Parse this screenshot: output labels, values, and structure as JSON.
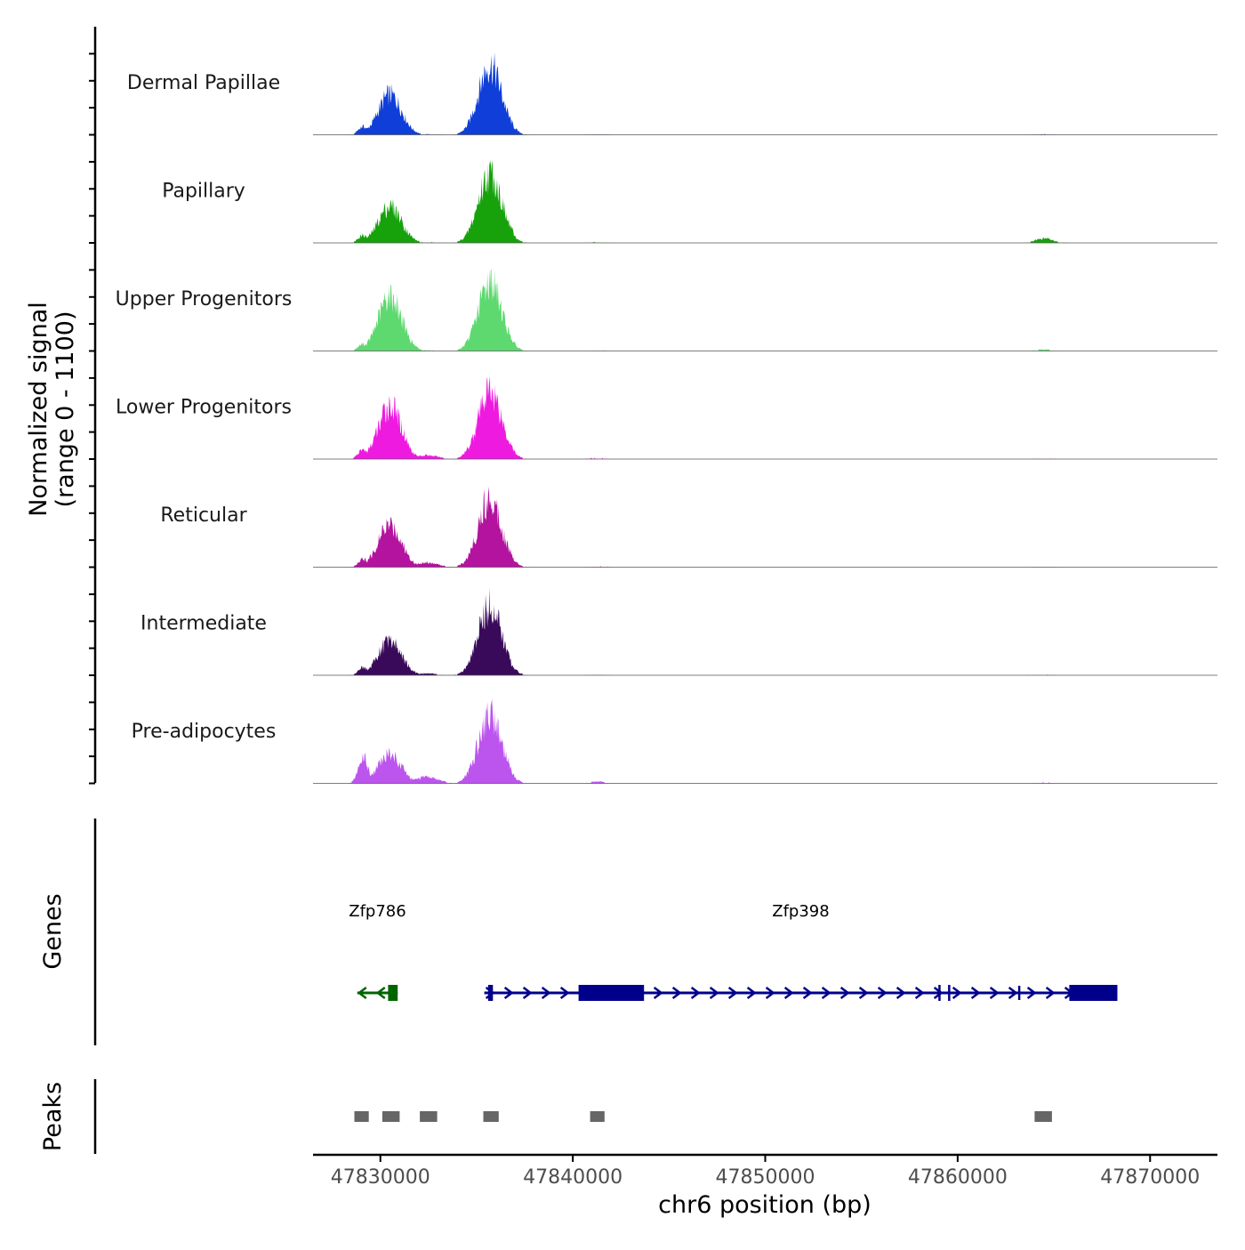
{
  "chart_data": {
    "type": "area",
    "chromosome": "chr6",
    "xlabel": "chr6 position (bp)",
    "ylabel_line1": "Normalized signal",
    "ylabel_line2": "(range 0 - 1100)",
    "ylim": [
      0,
      1100
    ],
    "xlim": [
      47826500,
      47873500
    ],
    "x_ticks": [
      47830000,
      47840000,
      47850000,
      47860000,
      47870000
    ],
    "x_tick_labels": [
      "47830000",
      "47840000",
      "47850000",
      "47860000",
      "47870000"
    ],
    "peak_profile": [
      {
        "center": 47829100,
        "width": 250
      },
      {
        "center": 47830500,
        "width": 600
      },
      {
        "center": 47832400,
        "width": 600
      },
      {
        "center": 47835700,
        "width": 600
      },
      {
        "center": 47836600,
        "width": 250
      },
      {
        "center": 47841300,
        "width": 400
      },
      {
        "center": 47864500,
        "width": 450
      }
    ],
    "series": [
      {
        "name": "Dermal Papillae",
        "color": "#0F3FD8",
        "peak_values": [
          130,
          640,
          15,
          1100,
          300,
          15,
          10
        ]
      },
      {
        "name": "Papillary",
        "color": "#17A20C",
        "peak_values": [
          120,
          580,
          15,
          1100,
          330,
          15,
          70
        ]
      },
      {
        "name": "Upper Progenitors",
        "color": "#5ED970",
        "peak_values": [
          110,
          870,
          15,
          1100,
          310,
          15,
          25
        ]
      },
      {
        "name": "Lower Progenitors",
        "color": "#EE1AE0",
        "peak_values": [
          150,
          840,
          60,
          1100,
          330,
          20,
          10
        ]
      },
      {
        "name": "Reticular",
        "color": "#B3139E",
        "peak_values": [
          130,
          670,
          70,
          1100,
          250,
          15,
          10
        ]
      },
      {
        "name": "Intermediate",
        "color": "#3A0A5A",
        "peak_values": [
          130,
          550,
          30,
          1100,
          200,
          15,
          10
        ]
      },
      {
        "name": "Pre-adipocytes",
        "color": "#BC55EE",
        "peak_values": [
          420,
          460,
          100,
          1100,
          250,
          30,
          20
        ]
      }
    ],
    "genes_label": "Genes",
    "genes": [
      {
        "name": "Zfp786",
        "strand": "-",
        "color": "#006400",
        "start": 47828800,
        "end": 47830900,
        "exons": [
          [
            47830400,
            47830900
          ]
        ]
      },
      {
        "name": "Zfp398",
        "strand": "+",
        "color": "#00008B",
        "start": 47835400,
        "end": 47868300,
        "exons": [
          [
            47835600,
            47835850
          ],
          [
            47840300,
            47843700
          ],
          [
            47859000,
            47859100
          ],
          [
            47859500,
            47859600
          ],
          [
            47865800,
            47868300
          ]
        ],
        "exon_marks": [
          47863200
        ]
      }
    ],
    "peaks_label": "Peaks",
    "peaks": [
      [
        47828650,
        47829400
      ],
      [
        47830100,
        47831000
      ],
      [
        47832050,
        47832950
      ],
      [
        47835350,
        47836150
      ],
      [
        47840900,
        47841650
      ],
      [
        47864000,
        47864900
      ]
    ]
  }
}
